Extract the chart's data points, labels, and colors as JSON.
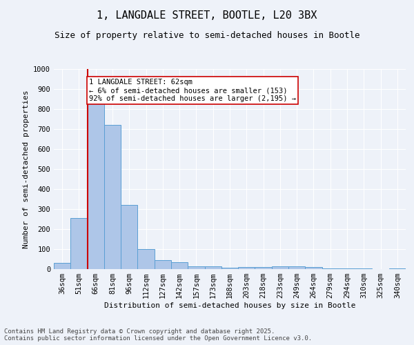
{
  "title": "1, LANGDALE STREET, BOOTLE, L20 3BX",
  "subtitle": "Size of property relative to semi-detached houses in Bootle",
  "xlabel": "Distribution of semi-detached houses by size in Bootle",
  "ylabel": "Number of semi-detached properties",
  "categories": [
    "36sqm",
    "51sqm",
    "66sqm",
    "81sqm",
    "96sqm",
    "112sqm",
    "127sqm",
    "142sqm",
    "157sqm",
    "173sqm",
    "188sqm",
    "203sqm",
    "218sqm",
    "233sqm",
    "249sqm",
    "264sqm",
    "279sqm",
    "294sqm",
    "310sqm",
    "325sqm",
    "340sqm"
  ],
  "values": [
    30,
    255,
    828,
    720,
    320,
    100,
    45,
    35,
    15,
    13,
    7,
    10,
    10,
    15,
    15,
    12,
    5,
    5,
    5,
    0,
    5
  ],
  "bar_color": "#aec6e8",
  "bar_edge_color": "#5a9fd4",
  "vline_color": "#cc0000",
  "annotation_text": "1 LANGDALE STREET: 62sqm\n← 6% of semi-detached houses are smaller (153)\n92% of semi-detached houses are larger (2,195) →",
  "annotation_box_color": "#ffffff",
  "annotation_box_edge_color": "#cc0000",
  "ylim": [
    0,
    1000
  ],
  "yticks": [
    0,
    100,
    200,
    300,
    400,
    500,
    600,
    700,
    800,
    900,
    1000
  ],
  "footer_text": "Contains HM Land Registry data © Crown copyright and database right 2025.\nContains public sector information licensed under the Open Government Licence v3.0.",
  "background_color": "#eef2f9",
  "grid_color": "#ffffff",
  "title_fontsize": 11,
  "subtitle_fontsize": 9,
  "xlabel_fontsize": 8,
  "ylabel_fontsize": 8,
  "tick_fontsize": 7.5,
  "annotation_fontsize": 7.5,
  "footer_fontsize": 6.5
}
